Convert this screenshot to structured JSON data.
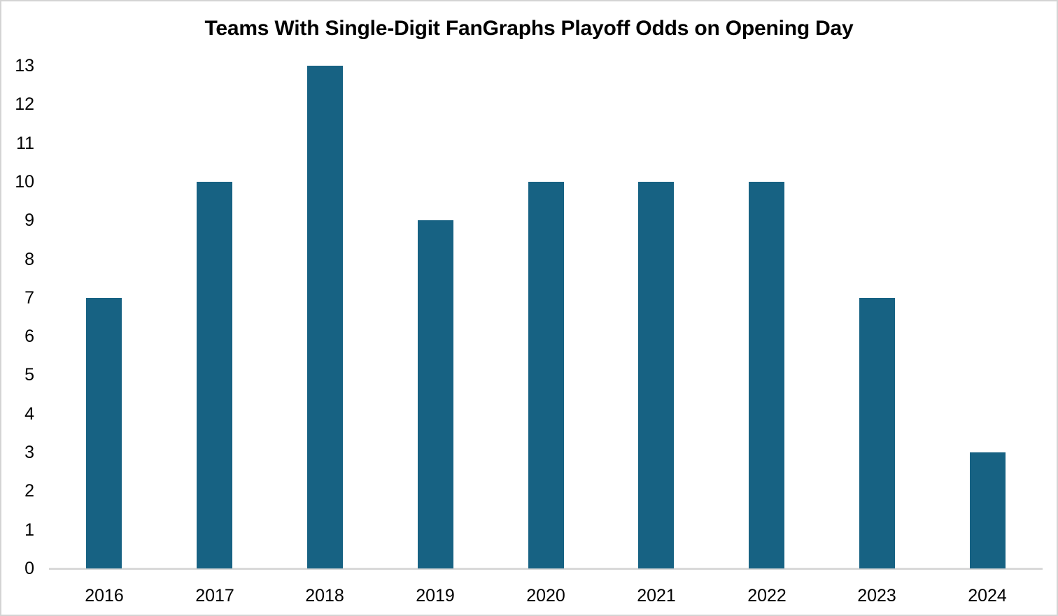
{
  "chart_data": {
    "type": "bar",
    "title": "Teams With Single-Digit FanGraphs Playoff Odds on Opening Day",
    "categories": [
      "2016",
      "2017",
      "2018",
      "2019",
      "2020",
      "2021",
      "2022",
      "2023",
      "2024"
    ],
    "values": [
      7,
      10,
      13,
      9,
      10,
      10,
      10,
      7,
      3
    ],
    "xlabel": "",
    "ylabel": "",
    "ylim": [
      0,
      13
    ],
    "yticks": [
      0,
      1,
      2,
      3,
      4,
      5,
      6,
      7,
      8,
      9,
      10,
      11,
      12,
      13
    ],
    "grid": false,
    "legend_position": "none",
    "bar_color": "#176283",
    "axis_line_color": "#d9d9d9",
    "text_color": "#000000",
    "border_color": "#d4d4d4"
  }
}
